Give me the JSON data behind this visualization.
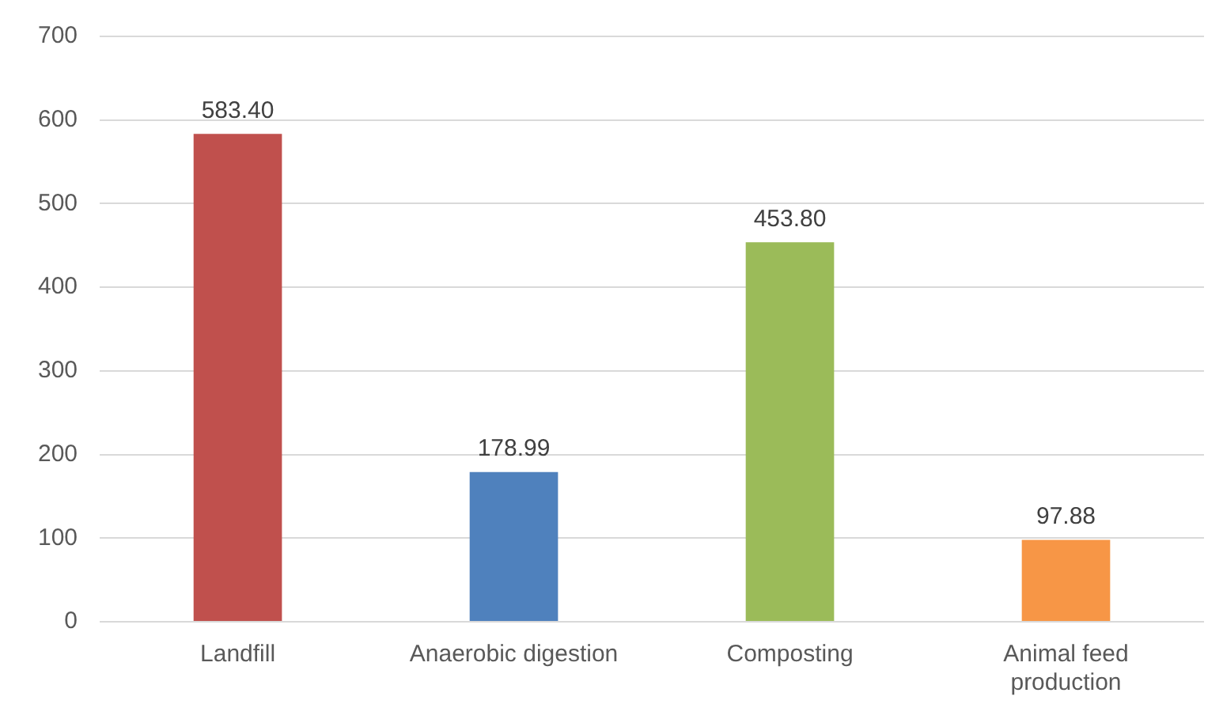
{
  "chart_data": {
    "type": "bar",
    "categories": [
      "Landfill",
      "Anaerobic digestion",
      "Composting",
      "Animal feed production"
    ],
    "values": [
      583.4,
      178.99,
      453.8,
      97.88
    ],
    "colors": [
      "#c0504d",
      "#4f81bd",
      "#9bbb59",
      "#f79646"
    ],
    "value_labels": [
      "583.40",
      "178.99",
      "453.80",
      "97.88"
    ],
    "ylim": [
      0,
      700
    ],
    "yticks": [
      0,
      100,
      200,
      300,
      400,
      500,
      600,
      700
    ],
    "grid": "y",
    "legend": false
  }
}
